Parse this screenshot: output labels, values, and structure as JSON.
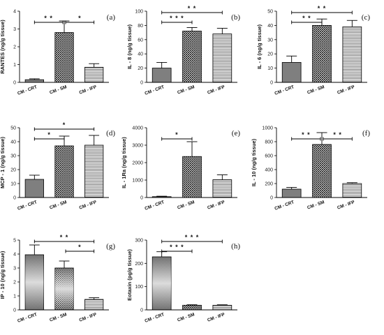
{
  "figure": {
    "background": "#ffffff"
  },
  "colors": {
    "bar_crt": "#7f7f7f",
    "axis": "#000000",
    "hatch": "#000000"
  },
  "chart_data": [
    {
      "id": "a",
      "type": "bar",
      "panel_label": "(a)",
      "ylabel": "RANTES (ng/g tissue)",
      "categories": [
        "CM - CRT",
        "CM - SM",
        "CM - IFP"
      ],
      "values": [
        0.15,
        2.8,
        0.85
      ],
      "errors": [
        0.05,
        0.65,
        0.2
      ],
      "ylim": [
        0,
        4
      ],
      "yticks": [
        "0",
        "1",
        "2",
        "3",
        "4"
      ],
      "significance": [
        {
          "from": 0,
          "to": 1,
          "label": "* *",
          "level": 0
        },
        {
          "from": 1,
          "to": 2,
          "label": "*",
          "level": 0
        }
      ]
    },
    {
      "id": "b",
      "type": "bar",
      "panel_label": "(b)",
      "ylabel": "IL - 8 (ng/g tissue)",
      "categories": [
        "CM - CRT",
        "CM - SM",
        "CM - IFP"
      ],
      "values": [
        20,
        72,
        68
      ],
      "errors": [
        8,
        5,
        8
      ],
      "ylim": [
        0,
        100
      ],
      "yticks": [
        "0",
        "20",
        "40",
        "60",
        "80",
        "100"
      ],
      "significance": [
        {
          "from": 0,
          "to": 2,
          "label": "* *",
          "level": 1
        },
        {
          "from": 0,
          "to": 1,
          "label": "* * *",
          "level": 0
        }
      ]
    },
    {
      "id": "c",
      "type": "bar",
      "panel_label": "(c)",
      "ylabel": "IL - 6 (ng/g tissue)",
      "categories": [
        "CM - CRT",
        "CM - SM",
        "CM - IFP"
      ],
      "values": [
        14,
        40,
        39
      ],
      "errors": [
        4.5,
        4.5,
        4.5
      ],
      "ylim": [
        0,
        50
      ],
      "yticks": [
        "0",
        "10",
        "20",
        "30",
        "40",
        "50"
      ],
      "significance": [
        {
          "from": 0,
          "to": 2,
          "label": "* *",
          "level": 1
        },
        {
          "from": 0,
          "to": 1,
          "label": "* *",
          "level": 0
        }
      ]
    },
    {
      "id": "d",
      "type": "bar",
      "panel_label": "(d)",
      "ylabel": "MCP - 1 (ng/g tissue)",
      "categories": [
        "CM - CRT",
        "CM - SM",
        "CM - IFP"
      ],
      "values": [
        13,
        37,
        37.5
      ],
      "errors": [
        3,
        7,
        7
      ],
      "ylim": [
        0,
        50
      ],
      "yticks": [
        "0",
        "10",
        "20",
        "30",
        "40",
        "50"
      ],
      "significance": [
        {
          "from": 0,
          "to": 2,
          "label": "*",
          "level": 1
        },
        {
          "from": 0,
          "to": 1,
          "label": "*",
          "level": 0
        }
      ]
    },
    {
      "id": "e",
      "type": "bar",
      "panel_label": "(e)",
      "ylabel": "IL - 1Ra (ng/g tissue)",
      "categories": [
        "CM - CRT",
        "CM - SM",
        "CM - IFP"
      ],
      "values": [
        50,
        2350,
        1020
      ],
      "errors": [
        25,
        850,
        280
      ],
      "ylim": [
        0,
        4000
      ],
      "yticks": [
        "0",
        "1000",
        "2000",
        "3000",
        "4000"
      ],
      "significance": [
        {
          "from": 0,
          "to": 1,
          "label": "*",
          "level": 0
        }
      ]
    },
    {
      "id": "f",
      "type": "bar",
      "panel_label": "(f)",
      "ylabel": "IL - 10 (ng/g tissue)",
      "categories": [
        "CM - CRT",
        "CM - SM",
        "CM - IFP"
      ],
      "values": [
        120,
        760,
        200
      ],
      "errors": [
        25,
        170,
        12
      ],
      "ylim": [
        0,
        1000
      ],
      "yticks": [
        "0",
        "200",
        "400",
        "600",
        "800",
        "1000"
      ],
      "significance": [
        {
          "from": 0,
          "to": 1,
          "label": "* *",
          "level": 0
        },
        {
          "from": 1,
          "to": 2,
          "label": "* *",
          "level": 0
        }
      ]
    },
    {
      "id": "g",
      "type": "bar",
      "panel_label": "(g)",
      "ylabel": "IP - 10 (ng/g tissue)",
      "categories": [
        "CM - CRT",
        "CM - SM",
        "CM - IFP"
      ],
      "values": [
        3.95,
        3.0,
        0.75
      ],
      "errors": [
        0.7,
        0.5,
        0.12
      ],
      "ylim": [
        0,
        5
      ],
      "yticks": [
        "0",
        "1",
        "2",
        "3",
        "4",
        "5"
      ],
      "significance": [
        {
          "from": 0,
          "to": 2,
          "label": "* *",
          "level": 1
        },
        {
          "from": 1,
          "to": 2,
          "label": "*",
          "level": 0
        }
      ]
    },
    {
      "id": "h",
      "type": "bar",
      "panel_label": "(h)",
      "ylabel": "Eotaxin (pg/g tissue)",
      "categories": [
        "CM - CRT",
        "CM - SM",
        "CM - IFP"
      ],
      "values": [
        228,
        20,
        20
      ],
      "errors": [
        22,
        2,
        2
      ],
      "ylim": [
        0,
        300
      ],
      "yticks": [
        "0",
        "100",
        "200",
        "300"
      ],
      "significance": [
        {
          "from": 0,
          "to": 2,
          "label": "* * *",
          "level": 1
        },
        {
          "from": 0,
          "to": 1,
          "label": "* * *",
          "level": 0
        }
      ]
    }
  ]
}
